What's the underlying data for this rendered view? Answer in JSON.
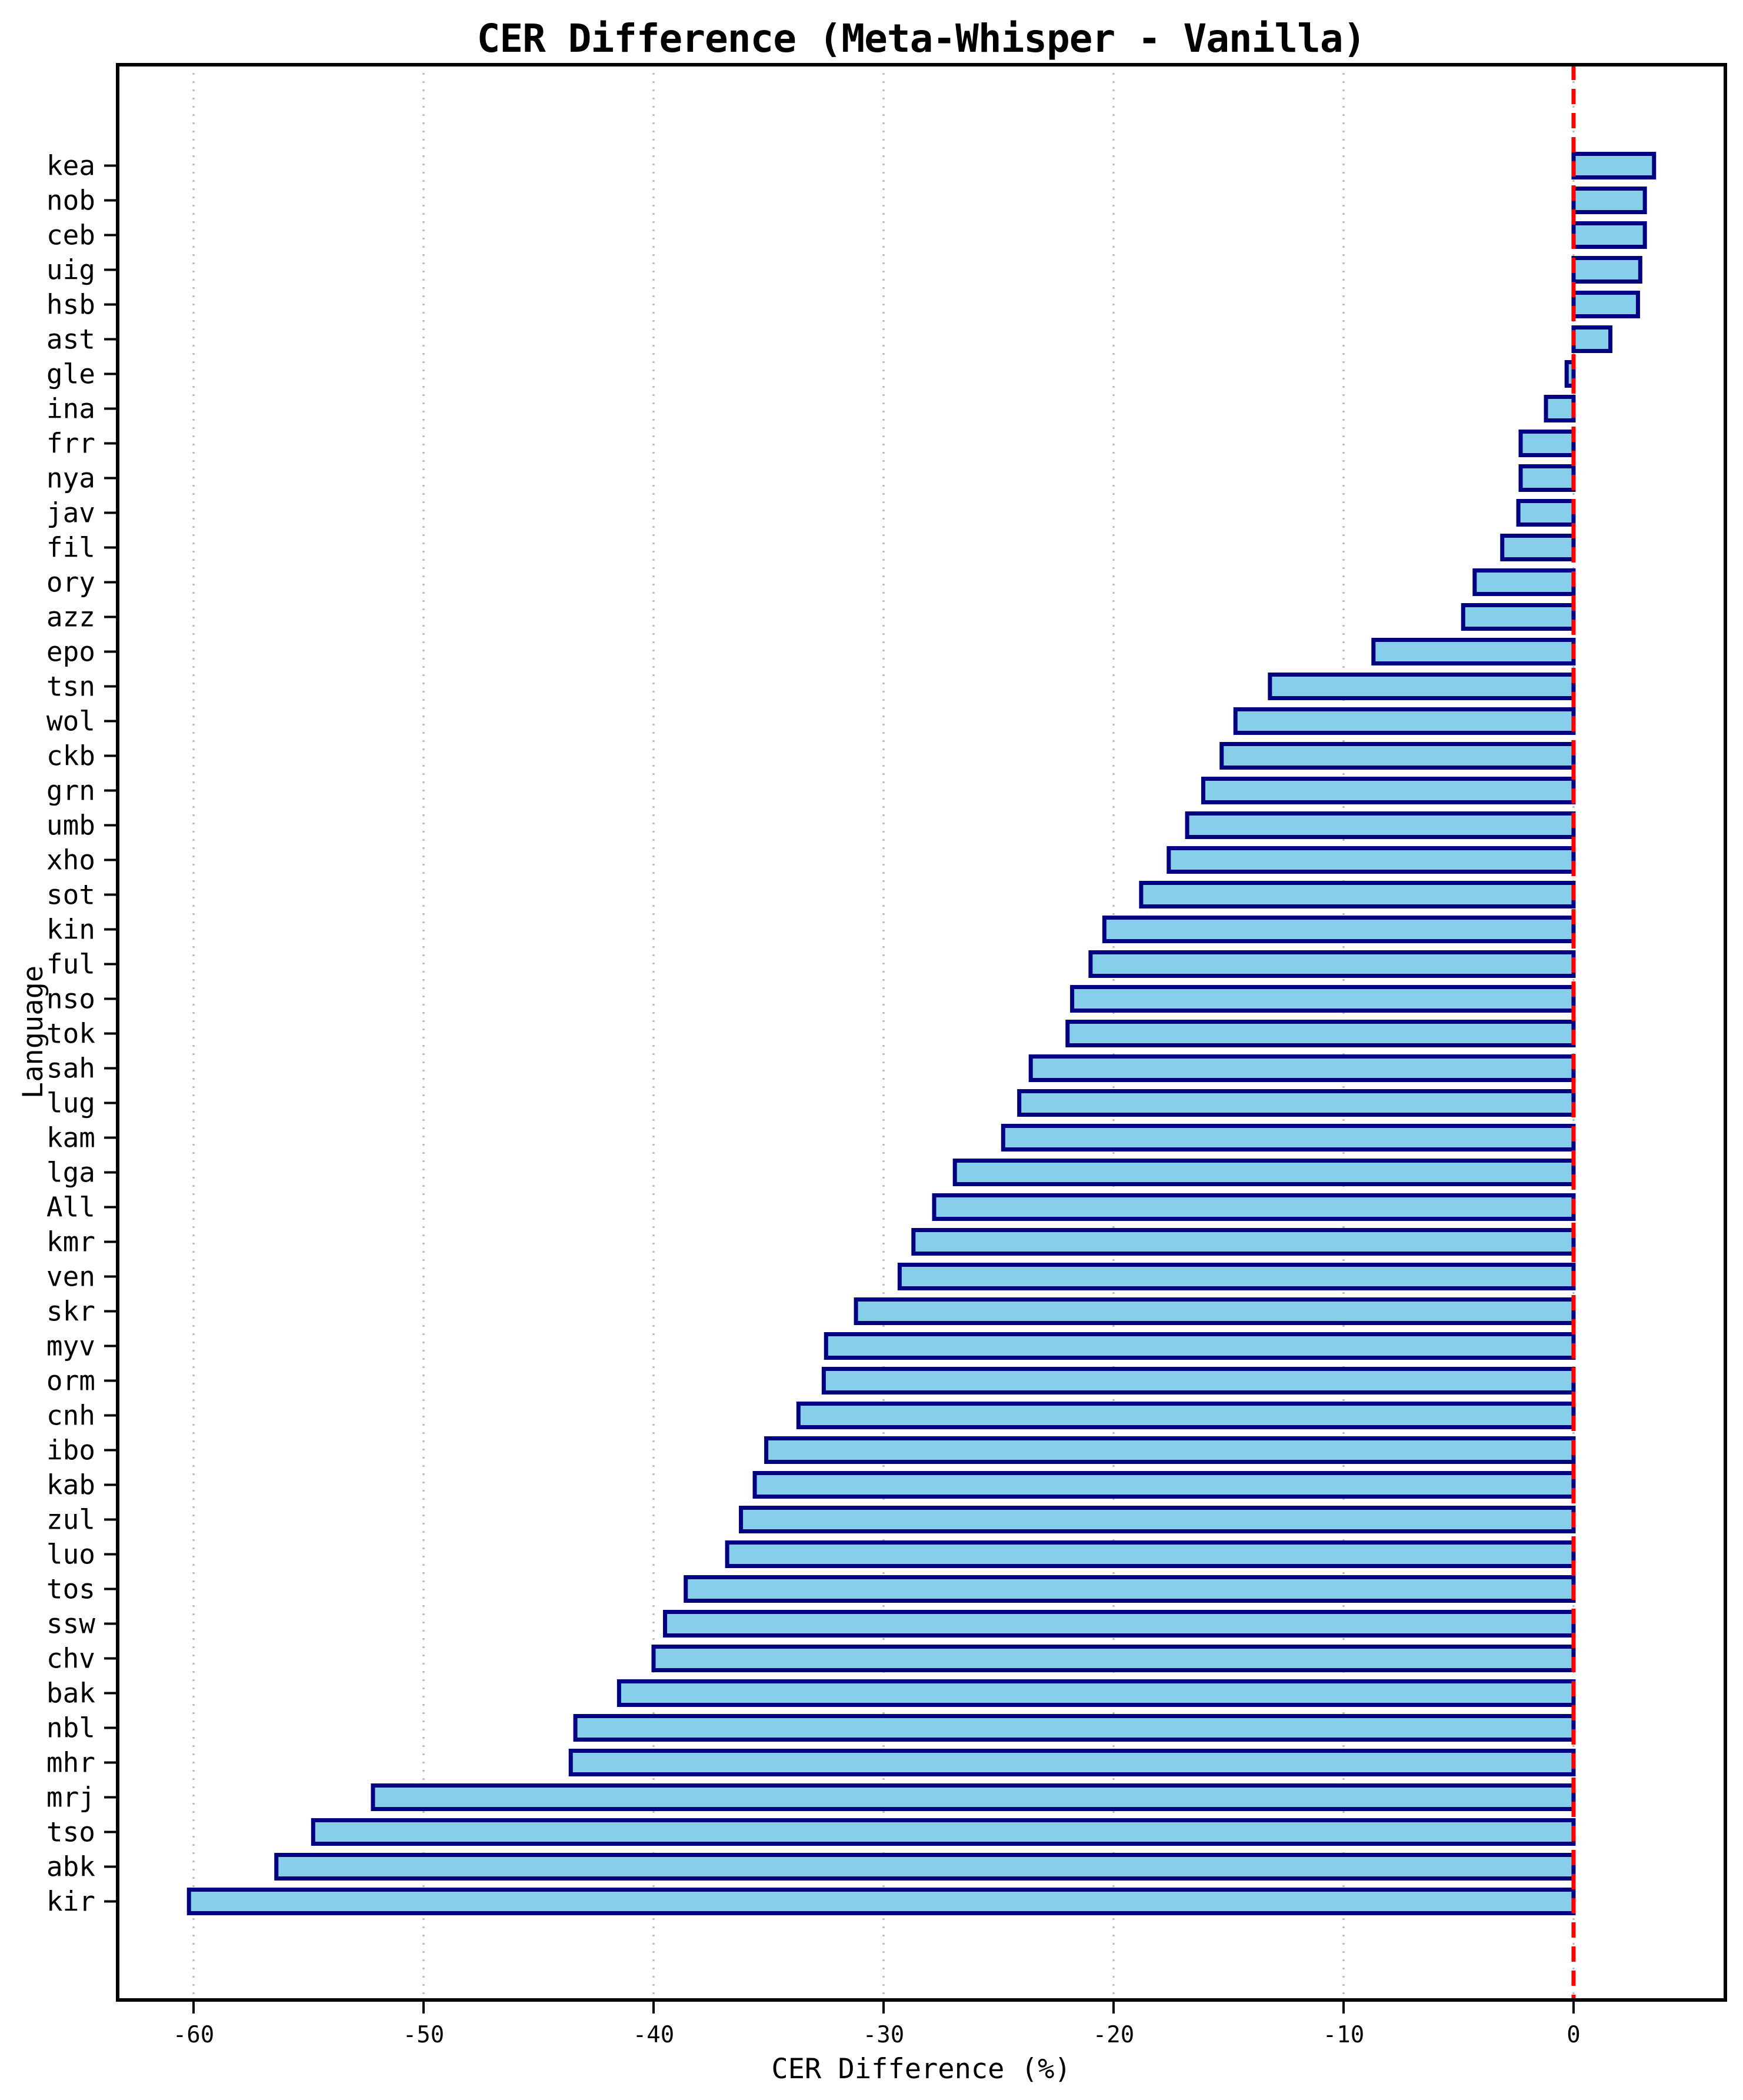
{
  "chart_data": {
    "type": "bar",
    "orientation": "horizontal",
    "title": "CER Difference (Meta-Whisper - Vanilla)",
    "xlabel": "CER Difference (%)",
    "ylabel": "Language",
    "xlim": [
      -63.3,
      6.6
    ],
    "x_ticks": [
      -60,
      -50,
      -40,
      -30,
      -20,
      -10,
      0
    ],
    "x_tick_labels": [
      "-60",
      "-50",
      "-40",
      "-30",
      "-20",
      "-10",
      "0"
    ],
    "grid": "vertical dotted gridlines at x ticks",
    "legend": "none",
    "reference_line_x": 0,
    "categories": [
      "kea",
      "nob",
      "ceb",
      "uig",
      "hsb",
      "ast",
      "gle",
      "ina",
      "frr",
      "nya",
      "jav",
      "fil",
      "ory",
      "azz",
      "epo",
      "tsn",
      "wol",
      "ckb",
      "grn",
      "umb",
      "xho",
      "sot",
      "kin",
      "ful",
      "nso",
      "tok",
      "sah",
      "lug",
      "kam",
      "lga",
      "All",
      "kmr",
      "ven",
      "skr",
      "myv",
      "orm",
      "cnh",
      "ibo",
      "kab",
      "zul",
      "luo",
      "tos",
      "ssw",
      "chv",
      "bak",
      "nbl",
      "mhr",
      "mrj",
      "tso",
      "abk",
      "kir"
    ],
    "values": [
      3.5,
      3.1,
      3.1,
      2.9,
      2.8,
      1.6,
      -0.3,
      -1.2,
      -2.3,
      -2.3,
      -2.4,
      -3.1,
      -4.3,
      -4.8,
      -8.7,
      -13.2,
      -14.7,
      -15.3,
      -16.1,
      -16.8,
      -17.6,
      -18.8,
      -20.4,
      -21.0,
      -21.8,
      -22.0,
      -23.6,
      -24.1,
      -24.8,
      -26.9,
      -27.8,
      -28.7,
      -29.3,
      -31.2,
      -32.5,
      -32.6,
      -33.7,
      -35.1,
      -35.6,
      -36.2,
      -36.8,
      -38.6,
      -39.5,
      -40.0,
      -41.5,
      -43.4,
      -43.6,
      -52.2,
      -54.8,
      -56.4,
      -60.2
    ]
  },
  "colors": {
    "bar_fill": "#87CEEB",
    "bar_edge": "#000080",
    "reference_line": "#FF0000",
    "grid": "#BBBBBB",
    "spine": "#000000",
    "text": "#000000",
    "background": "#FFFFFF"
  }
}
